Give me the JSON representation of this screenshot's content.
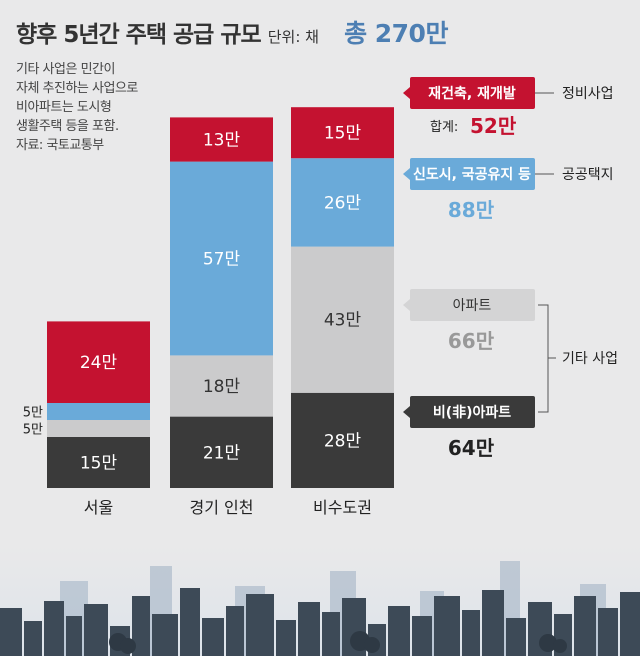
{
  "title": "향후 5년간 주택 공급 규모",
  "unit": "단위: 채",
  "total": "총 270만",
  "note": [
    "기타 사업은 민간이",
    "자체 추진하는 사업으로",
    "비아파트는 도시형",
    "생활주택 등을 포함.",
    "자료: 국토교통부"
  ],
  "colors": {
    "red": "#c41230",
    "blue": "#6aaad9",
    "lightgrey": "#cbcbcc",
    "darkgrey": "#3a3a3a"
  },
  "chart_data": {
    "type": "bar",
    "stacked": true,
    "categories": [
      "서울",
      "경기 인천",
      "비수도권"
    ],
    "series": [
      {
        "name": "비(非)아파트",
        "values": [
          15,
          21,
          28
        ]
      },
      {
        "name": "아파트",
        "values": [
          5,
          18,
          43
        ]
      },
      {
        "name": "신도시, 국공유지 등",
        "values": [
          5,
          57,
          26
        ]
      },
      {
        "name": "재건축, 재개발",
        "values": [
          24,
          13,
          15
        ]
      }
    ],
    "value_labels": [
      [
        "15만",
        "21만",
        "28만"
      ],
      [
        "5만",
        "18만",
        "43만"
      ],
      [
        "5만",
        "57만",
        "26만"
      ],
      [
        "24만",
        "13만",
        "15만"
      ]
    ],
    "legend": {
      "redevelop": {
        "label": "재건축, 재개발",
        "group": "정비사업",
        "sum_label": "합계:",
        "sum": "52만"
      },
      "public": {
        "label": "신도시, 국공유지 등",
        "group": "공공택지",
        "sum": "88만"
      },
      "apt": {
        "label": "아파트",
        "sum": "66만"
      },
      "nonapt": {
        "label": "비(非)아파트",
        "sum": "64만"
      },
      "other_group": "기타 사업"
    }
  }
}
